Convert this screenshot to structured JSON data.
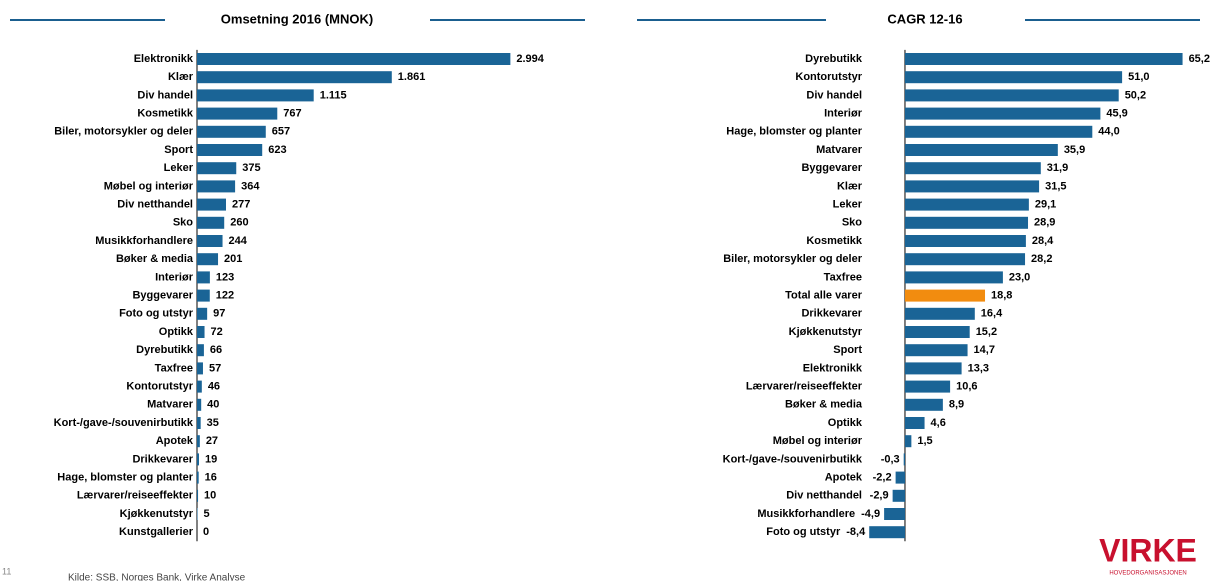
{
  "chart_data": [
    {
      "type": "bar",
      "orientation": "horizontal",
      "title": "Omsetning 2016 (MNOK)",
      "color": "#1a6496",
      "categories": [
        "Elektronikk",
        "Klær",
        "Div handel",
        "Kosmetikk",
        "Biler, motorsykler og deler",
        "Sport",
        "Leker",
        "Møbel og interiør",
        "Div netthandel",
        "Sko",
        "Musikkforhandlere",
        "Bøker & media",
        "Interiør",
        "Byggevarer",
        "Foto og utstyr",
        "Optikk",
        "Dyrebutikk",
        "Taxfree",
        "Kontorutstyr",
        "Matvarer",
        "Kort-/gave-/souvenirbutikk",
        "Apotek",
        "Drikkevarer",
        "Hage, blomster og planter",
        "Lærvarer/reiseeffekter",
        "Kjøkkenutstyr",
        "Kunstgallerier"
      ],
      "values": [
        2994,
        1861,
        1115,
        767,
        657,
        623,
        375,
        364,
        277,
        260,
        244,
        201,
        123,
        122,
        97,
        72,
        66,
        57,
        46,
        40,
        35,
        27,
        19,
        16,
        10,
        5,
        0
      ],
      "value_labels": [
        "2.994",
        "1.861",
        "1.115",
        "767",
        "657",
        "623",
        "375",
        "364",
        "277",
        "260",
        "244",
        "201",
        "123",
        "122",
        "97",
        "72",
        "66",
        "57",
        "46",
        "40",
        "35",
        "27",
        "19",
        "16",
        "10",
        "5",
        "0"
      ],
      "xlim": [
        0,
        3000
      ]
    },
    {
      "type": "bar",
      "orientation": "horizontal",
      "title": "CAGR 12-16",
      "categories": [
        "Dyrebutikk",
        "Kontorutstyr",
        "Div handel",
        "Interiør",
        "Hage, blomster og planter",
        "Matvarer",
        "Byggevarer",
        "Klær",
        "Leker",
        "Sko",
        "Kosmetikk",
        "Biler, motorsykler og deler",
        "Taxfree",
        "Total alle varer",
        "Drikkevarer",
        "Kjøkkenutstyr",
        "Sport",
        "Elektronikk",
        "Lærvarer/reiseeffekter",
        "Bøker & media",
        "Optikk",
        "Møbel og interiør",
        "Kort-/gave-/souvenirbutikk",
        "Apotek",
        "Div netthandel",
        "Musikkforhandlere",
        "Foto og utstyr"
      ],
      "values": [
        65.2,
        51.0,
        50.2,
        45.9,
        44.0,
        35.9,
        31.9,
        31.5,
        29.1,
        28.9,
        28.4,
        28.2,
        23.0,
        18.8,
        16.4,
        15.2,
        14.7,
        13.3,
        10.6,
        8.9,
        4.6,
        1.5,
        -0.3,
        -2.2,
        -2.9,
        -4.9,
        -8.4
      ],
      "value_labels": [
        "65,2",
        "51,0",
        "50,2",
        "45,9",
        "44,0",
        "35,9",
        "31,9",
        "31,5",
        "29,1",
        "28,9",
        "28,4",
        "28,2",
        "23,0",
        "18,8",
        "16,4",
        "15,2",
        "14,7",
        "13,3",
        "10,6",
        "8,9",
        "4,6",
        "1,5",
        "-0,3",
        "-2,2",
        "-2,9",
        "-4,9",
        "-8,4"
      ],
      "colors": [
        "#1a6496",
        "#1a6496",
        "#1a6496",
        "#1a6496",
        "#1a6496",
        "#1a6496",
        "#1a6496",
        "#1a6496",
        "#1a6496",
        "#1a6496",
        "#1a6496",
        "#1a6496",
        "#1a6496",
        "#f28c0f",
        "#1a6496",
        "#1a6496",
        "#1a6496",
        "#1a6496",
        "#1a6496",
        "#1a6496",
        "#1a6496",
        "#1a6496",
        "#1a6496",
        "#1a6496",
        "#1a6496",
        "#1a6496",
        "#1a6496"
      ],
      "xlim": [
        -10,
        70
      ]
    }
  ],
  "footer": {
    "page_number": "11",
    "source": "Kilde: SSB, Norges Bank, Virke Analyse",
    "logo": "VIRKE",
    "logo_subtitle": "HOVEDORGANISASJONEN"
  }
}
